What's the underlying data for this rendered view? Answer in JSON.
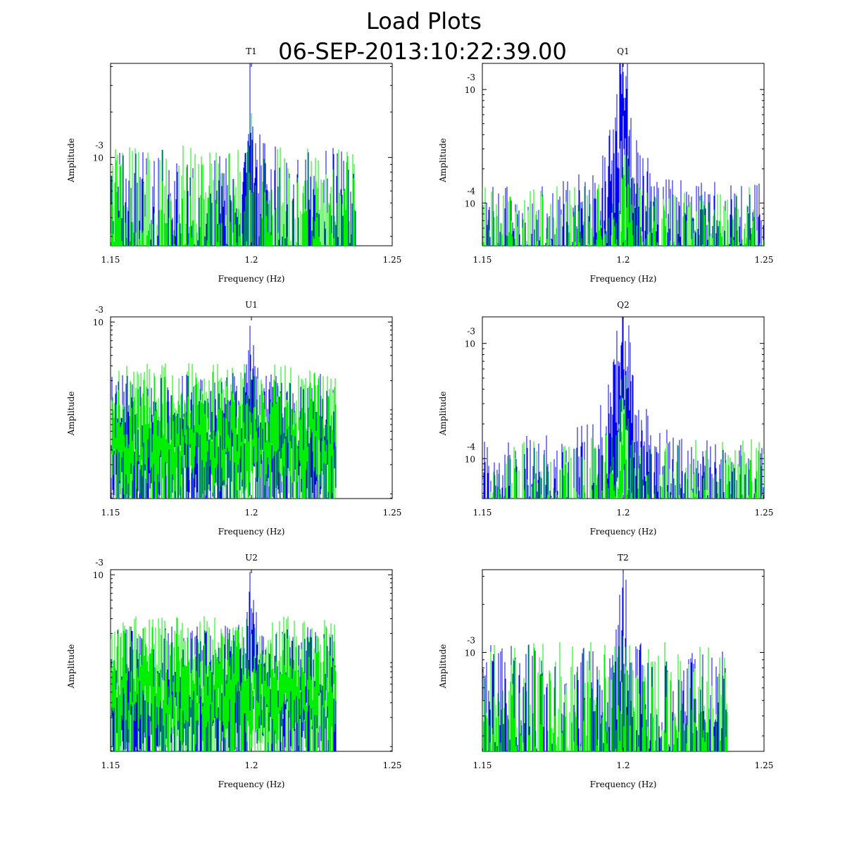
{
  "header": {
    "title": "Load Plots",
    "timestamp": "06-SEP-2013:10:22:39.00"
  },
  "colors": {
    "series_blue": "#0000ee",
    "series_green": "#00ee00"
  },
  "chart_data": [
    {
      "id": "T1",
      "type": "line",
      "title": "T1",
      "xlabel": "Frequency (Hz)",
      "ylabel": "Amplitude",
      "xlim": [
        1.15,
        1.25
      ],
      "xticks": [
        1.15,
        1.2,
        1.25
      ],
      "xtick_labels": [
        "1.15",
        "1.2",
        "1.25"
      ],
      "yscale": "log",
      "ylim": [
        0.00026,
        0.0042
      ],
      "yticks": [
        0.001
      ],
      "ytick_labels": [
        {
          "base": "10",
          "exp": "-3"
        }
      ],
      "series": [
        {
          "name": "blue",
          "color": "#0000ee",
          "peak_x": 1.2,
          "peak_y": 0.0032,
          "floor": 0.00043,
          "width": 0.0006,
          "cutoff": 1.237
        },
        {
          "name": "green",
          "color": "#00ee00",
          "peak_x": 1.2,
          "peak_y": 0.0008,
          "floor": 0.00045,
          "width": 0.0006,
          "cutoff": 1.237
        }
      ]
    },
    {
      "id": "Q1",
      "type": "line",
      "title": "Q1",
      "xlabel": "Frequency (Hz)",
      "ylabel": "Amplitude",
      "xlim": [
        1.15,
        1.25
      ],
      "xticks": [
        1.15,
        1.2,
        1.25
      ],
      "xtick_labels": [
        "1.15",
        "1.2",
        "1.25"
      ],
      "yscale": "log",
      "ylim": [
        4.2e-05,
        0.0017
      ],
      "yticks": [
        0.0001,
        0.001
      ],
      "ytick_labels": [
        {
          "base": "10",
          "exp": "-4"
        },
        {
          "base": "10",
          "exp": "-3"
        }
      ],
      "series": [
        {
          "name": "blue",
          "color": "#0000ee",
          "peak_x": 1.2,
          "peak_y": 0.0014,
          "floor": 5.5e-05,
          "width": 0.0015,
          "cutoff": 1.25
        },
        {
          "name": "green",
          "color": "#00ee00",
          "peak_x": 1.2,
          "peak_y": 0.00025,
          "floor": 5.2e-05,
          "width": 0.0012,
          "cutoff": 1.25
        }
      ]
    },
    {
      "id": "U1",
      "type": "line",
      "title": "U1",
      "xlabel": "Frequency (Hz)",
      "ylabel": "Amplitude",
      "xlim": [
        1.15,
        1.25
      ],
      "xticks": [
        1.15,
        1.2,
        1.25
      ],
      "xtick_labels": [
        "1.15",
        "1.2",
        "1.25"
      ],
      "yscale": "log",
      "ylim": [
        7.9e-06,
        0.00115
      ],
      "yticks": [
        0.001
      ],
      "ytick_labels": [
        {
          "base": "10",
          "exp": "-3"
        }
      ],
      "series": [
        {
          "name": "blue",
          "color": "#0000ee",
          "peak_x": 1.2,
          "peak_y": 0.0006,
          "floor": 9e-05,
          "width": 0.0005,
          "cutoff": 1.23
        },
        {
          "name": "green",
          "color": "#00ee00",
          "peak_x": 1.2,
          "peak_y": 0.00012,
          "floor": 0.00012,
          "width": 0.0005,
          "cutoff": 1.23
        }
      ]
    },
    {
      "id": "Q2",
      "type": "line",
      "title": "Q2",
      "xlabel": "Frequency (Hz)",
      "ylabel": "Amplitude",
      "xlim": [
        1.15,
        1.25
      ],
      "xticks": [
        1.15,
        1.2,
        1.25
      ],
      "xtick_labels": [
        "1.15",
        "1.2",
        "1.25"
      ],
      "yscale": "log",
      "ylim": [
        4.5e-05,
        0.0017
      ],
      "yticks": [
        0.0001,
        0.001
      ],
      "ytick_labels": [
        {
          "base": "10",
          "exp": "-4"
        },
        {
          "base": "10",
          "exp": "-3"
        }
      ],
      "series": [
        {
          "name": "blue",
          "color": "#0000ee",
          "peak_x": 1.2,
          "peak_y": 0.0016,
          "floor": 5.8e-05,
          "width": 0.0015,
          "cutoff": 1.25
        },
        {
          "name": "green",
          "color": "#00ee00",
          "peak_x": 1.2,
          "peak_y": 0.00026,
          "floor": 5.5e-05,
          "width": 0.0012,
          "cutoff": 1.25
        }
      ]
    },
    {
      "id": "U2",
      "type": "line",
      "title": "U2",
      "xlabel": "Frequency (Hz)",
      "ylabel": "Amplitude",
      "xlim": [
        1.15,
        1.25
      ],
      "xticks": [
        1.15,
        1.2,
        1.25
      ],
      "xtick_labels": [
        "1.15",
        "1.2",
        "1.25"
      ],
      "yscale": "log",
      "ylim": [
        7.9e-06,
        0.00115
      ],
      "yticks": [
        0.001
      ],
      "ytick_labels": [
        {
          "base": "10",
          "exp": "-3"
        }
      ],
      "series": [
        {
          "name": "blue",
          "color": "#0000ee",
          "peak_x": 1.2,
          "peak_y": 0.00075,
          "floor": 9e-05,
          "width": 0.0005,
          "cutoff": 1.23
        },
        {
          "name": "green",
          "color": "#00ee00",
          "peak_x": 1.2,
          "peak_y": 0.00012,
          "floor": 0.00012,
          "width": 0.0005,
          "cutoff": 1.23
        }
      ]
    },
    {
      "id": "T2",
      "type": "line",
      "title": "T2",
      "xlabel": "Frequency (Hz)",
      "ylabel": "Amplitude",
      "xlim": [
        1.15,
        1.25
      ],
      "xticks": [
        1.15,
        1.2,
        1.25
      ],
      "xtick_labels": [
        "1.15",
        "1.2",
        "1.25"
      ],
      "yscale": "log",
      "ylim": [
        0.00024,
        0.0033
      ],
      "yticks": [
        0.001
      ],
      "ytick_labels": [
        {
          "base": "10",
          "exp": "-3"
        }
      ],
      "series": [
        {
          "name": "blue",
          "color": "#0000ee",
          "peak_x": 1.2,
          "peak_y": 0.0029,
          "floor": 0.00042,
          "width": 0.0006,
          "cutoff": 1.237
        },
        {
          "name": "green",
          "color": "#00ee00",
          "peak_x": 1.2,
          "peak_y": 0.00065,
          "floor": 0.00044,
          "width": 0.0006,
          "cutoff": 1.237
        }
      ]
    }
  ]
}
